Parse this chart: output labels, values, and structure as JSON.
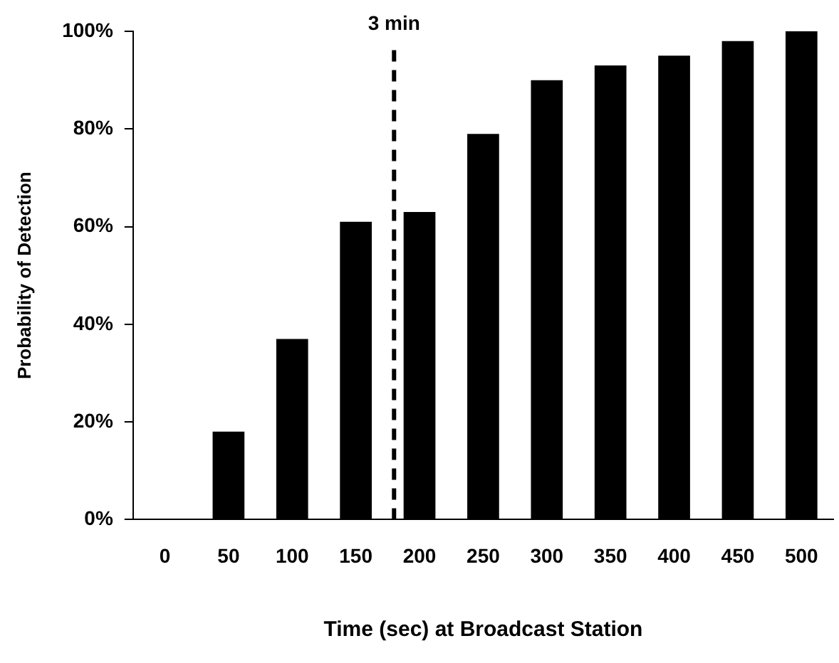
{
  "chart_data": {
    "type": "bar",
    "xlabel": "Time (sec) at Broadcast Station",
    "ylabel": "Probability of Detection",
    "x": [
      0,
      50,
      100,
      150,
      200,
      250,
      300,
      350,
      400,
      450,
      500
    ],
    "values": [
      0,
      18,
      37,
      61,
      63,
      79,
      90,
      93,
      95,
      98,
      100
    ],
    "color": "#000000",
    "xlim": [
      -25,
      525
    ],
    "xticks": [
      0,
      50,
      100,
      150,
      200,
      250,
      300,
      350,
      400,
      450,
      500
    ],
    "ylim": [
      0,
      100
    ],
    "yticks": [
      {
        "value": 0,
        "label": "0%"
      },
      {
        "value": 20,
        "label": "20%"
      },
      {
        "value": 40,
        "label": "40%"
      },
      {
        "value": 60,
        "label": "60%"
      },
      {
        "value": 80,
        "label": "80%"
      },
      {
        "value": 100,
        "label": "100%"
      }
    ],
    "ref_lines": [
      {
        "axis": "x",
        "value": 180,
        "label": "3 min",
        "color": "#000000",
        "line_style": "dashed"
      }
    ],
    "grid": false,
    "legend": false
  }
}
